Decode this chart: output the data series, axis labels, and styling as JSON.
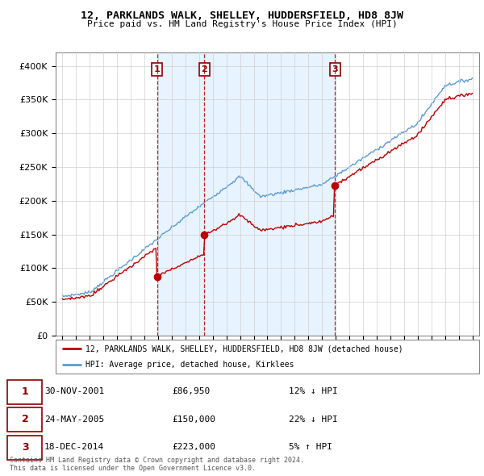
{
  "title": "12, PARKLANDS WALK, SHELLEY, HUDDERSFIELD, HD8 8JW",
  "subtitle": "Price paid vs. HM Land Registry's House Price Index (HPI)",
  "sales": [
    {
      "label": "1",
      "date_float": 2001.917,
      "price": 86950
    },
    {
      "label": "2",
      "date_float": 2005.375,
      "price": 150000
    },
    {
      "label": "3",
      "date_float": 2014.958,
      "price": 223000
    }
  ],
  "legend_entries": [
    "12, PARKLANDS WALK, SHELLEY, HUDDERSFIELD, HD8 8JW (detached house)",
    "HPI: Average price, detached house, Kirklees"
  ],
  "table_rows": [
    {
      "num": "1",
      "date": "30-NOV-2001",
      "price": "£86,950",
      "change": "12% ↓ HPI"
    },
    {
      "num": "2",
      "date": "24-MAY-2005",
      "price": "£150,000",
      "change": "22% ↓ HPI"
    },
    {
      "num": "3",
      "date": "18-DEC-2014",
      "price": "£223,000",
      "change": "5% ↑ HPI"
    }
  ],
  "footer": "Contains HM Land Registry data © Crown copyright and database right 2024.\nThis data is licensed under the Open Government Licence v3.0.",
  "hpi_color": "#5b9bd5",
  "price_color": "#c00000",
  "vline_color": "#c00000",
  "shade_color": "#ddeeff",
  "ylim": [
    0,
    420000
  ],
  "xlim": [
    1994.5,
    2025.5
  ],
  "yticks": [
    0,
    50000,
    100000,
    150000,
    200000,
    250000,
    300000,
    350000,
    400000
  ],
  "ytick_labels": [
    "£0",
    "£50K",
    "£100K",
    "£150K",
    "£200K",
    "£250K",
    "£300K",
    "£350K",
    "£400K"
  ]
}
